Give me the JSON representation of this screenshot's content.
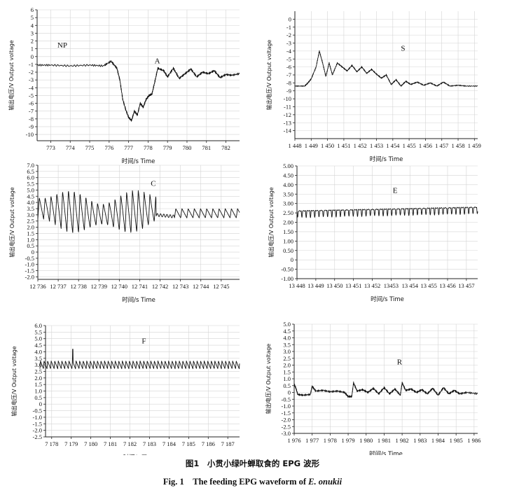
{
  "chart_data": [
    {
      "type": "line",
      "panel_label": "NP / A",
      "annotations": [
        "NP",
        "A"
      ],
      "xlabel": "时间/s Time",
      "ylabel": "输出电压/V Output voltage",
      "xlim": [
        772.3,
        782.7
      ],
      "ylim": [
        -10.8,
        6
      ],
      "x_ticks": [
        773,
        774,
        775,
        776,
        777,
        778,
        779,
        780,
        781,
        782
      ],
      "x_tick_labels": [
        "773",
        "774",
        "775",
        "776",
        "777",
        "778",
        "779",
        "780",
        "781",
        "782"
      ],
      "y_ticks": [
        6,
        5,
        4,
        3,
        2,
        1,
        0,
        -1,
        -2,
        -3,
        -4,
        -5,
        -6,
        -7,
        -8,
        -9,
        -10
      ],
      "series": [
        {
          "x": [
            772.3,
            773.0,
            774.0,
            775.0,
            775.7,
            776.1,
            776.4,
            776.55,
            776.7,
            776.85,
            777.0,
            777.15,
            777.3,
            777.45,
            777.6,
            777.75,
            777.9,
            778.05,
            778.2,
            778.35,
            778.5,
            778.8,
            779.0,
            779.3,
            779.6,
            779.9,
            780.2,
            780.5,
            780.8,
            781.1,
            781.4,
            781.7,
            782.0,
            782.3,
            782.7
          ],
          "y": [
            -1.1,
            -1.1,
            -1.2,
            -1.1,
            -1.2,
            -0.6,
            -1.5,
            -3.0,
            -5.5,
            -6.8,
            -7.8,
            -8.2,
            -7.0,
            -7.5,
            -6.0,
            -6.5,
            -5.5,
            -5.0,
            -4.8,
            -3.2,
            -1.5,
            -1.8,
            -2.6,
            -1.5,
            -2.8,
            -2.2,
            -1.6,
            -2.6,
            -2.0,
            -2.2,
            -1.8,
            -2.7,
            -2.3,
            -2.4,
            -2.2
          ]
        }
      ]
    },
    {
      "type": "line",
      "panel_label": "S",
      "annotations": [
        "S"
      ],
      "xlabel": "时间/s Time",
      "ylabel": "输出电压/V Output voltage",
      "xlim": [
        1448,
        1459.2
      ],
      "ylim": [
        -15,
        1
      ],
      "x_ticks": [
        1448,
        1449,
        1450,
        1451,
        1452,
        1453,
        1454,
        1455,
        1456,
        1457,
        1458,
        1459
      ],
      "x_tick_labels": [
        "1 448",
        "1 449",
        "1 450",
        "1 451",
        "1 452",
        "1 453",
        "1 454",
        "1 455",
        "1 456",
        "1 457",
        "1 458",
        "1 459"
      ],
      "y_ticks": [
        0,
        -1,
        -2,
        -3,
        -4,
        -5,
        -6,
        -7,
        -8,
        -9,
        -10,
        -11,
        -12,
        -13,
        -14
      ],
      "series": [
        {
          "x": [
            1448.0,
            1448.6,
            1448.8,
            1449.0,
            1449.3,
            1449.5,
            1449.7,
            1449.9,
            1450.1,
            1450.3,
            1450.6,
            1450.9,
            1451.2,
            1451.5,
            1451.8,
            1452.1,
            1452.4,
            1452.7,
            1453.0,
            1453.3,
            1453.6,
            1453.9,
            1454.2,
            1454.5,
            1454.8,
            1455.1,
            1455.5,
            1455.9,
            1456.3,
            1456.7,
            1457.1,
            1457.5,
            1458.0,
            1458.5,
            1459.2
          ],
          "y": [
            -8.4,
            -8.4,
            -8.0,
            -7.5,
            -6.0,
            -4.0,
            -5.5,
            -7.2,
            -5.5,
            -7.0,
            -5.5,
            -6.0,
            -6.5,
            -5.8,
            -6.6,
            -6.0,
            -6.8,
            -6.3,
            -6.9,
            -7.4,
            -7.0,
            -8.2,
            -7.6,
            -8.4,
            -7.8,
            -8.2,
            -7.9,
            -8.3,
            -8.0,
            -8.4,
            -7.9,
            -8.4,
            -8.3,
            -8.4,
            -8.4
          ]
        }
      ]
    },
    {
      "type": "line",
      "panel_label": "C",
      "annotations": [
        "C"
      ],
      "xlabel": "时间/s Time",
      "ylabel": "输出电压/V Output voltage",
      "xlim": [
        12736,
        12745.9
      ],
      "ylim": [
        -2.2,
        7.0
      ],
      "x_ticks": [
        12736,
        12737,
        12738,
        12739,
        12740,
        12741,
        12742,
        12743,
        12744,
        12745
      ],
      "x_tick_labels": [
        "12 736",
        "12 737",
        "12 738",
        "12 739",
        "12 740",
        "12 741",
        "12 742",
        "12 743",
        "12 744",
        "12 745"
      ],
      "y_ticks": [
        7.0,
        6.5,
        6.0,
        5.5,
        5.0,
        4.5,
        4.0,
        3.5,
        3.0,
        2.5,
        2.0,
        1.5,
        1.0,
        0.5,
        0.0,
        -0.5,
        -1.0,
        -1.5,
        -2.0
      ],
      "y_tick_labels": [
        "7.0",
        "6.5",
        "6.0",
        "5.5",
        "5.0",
        "4.5",
        "4.0",
        "3.5",
        "3.0",
        "2.5",
        "2.0",
        "1.5",
        "1.0",
        "0.5",
        "0",
        "-0.5",
        "-1.0",
        "-1.5",
        "-2.0"
      ],
      "waveform": "oscillation, 4.8 to 2.2 V at about 3.5 Hz until 12 741.8 s, then about 3.0 V with smaller oscillation (3.5 to 2.7 V)"
    },
    {
      "type": "line",
      "panel_label": "E",
      "annotations": [
        "E"
      ],
      "xlabel": "时间/s Time",
      "ylabel": "输出电压/V Output voltage",
      "xlim": [
        13448,
        13457.6
      ],
      "ylim": [
        -1.0,
        5.0
      ],
      "x_ticks": [
        13448,
        13449,
        13450,
        13451,
        13452,
        13453,
        13454,
        13455,
        13456,
        13457
      ],
      "x_tick_labels": [
        "13 448",
        "13 449",
        "13 450",
        "13 451",
        "13 452",
        "13453",
        "13 454",
        "13 455",
        "13 456",
        "13 457"
      ],
      "y_ticks": [
        5.0,
        4.5,
        4.0,
        3.5,
        3.0,
        2.5,
        2.0,
        1.5,
        1.0,
        0.5,
        0.0,
        -0.5,
        -1.0
      ],
      "y_tick_labels": [
        "5.00",
        "4.50",
        "4.00",
        "3.50",
        "3.00",
        "2.50",
        "2.00",
        "1.50",
        "1.00",
        "0.50",
        "0",
        "-0.50",
        "-1.00"
      ],
      "waveform": "regular dips about 4.4 Hz; baseline rises from 2.6 V to 2.8 V, dips about 0.35 V"
    },
    {
      "type": "line",
      "panel_label": "F",
      "annotations": [
        "F"
      ],
      "xlabel": "时间/s Time",
      "ylabel": "输出电压/V Output voltage",
      "xlim": [
        7177.4,
        7187.6
      ],
      "ylim": [
        -2.5,
        6.0
      ],
      "x_ticks": [
        7178,
        7179,
        7180,
        7181,
        7182,
        7183,
        7184,
        7185,
        7186,
        7187
      ],
      "x_tick_labels": [
        "7 178",
        "7 179",
        "7 180",
        "7 181",
        "7 182",
        "7 183",
        "7 184",
        "7 185",
        "7 186",
        "7 187"
      ],
      "y_ticks": [
        6.0,
        5.5,
        5.0,
        4.5,
        4.0,
        3.5,
        3.0,
        2.5,
        2.0,
        1.5,
        1.0,
        0.5,
        0.0,
        -0.5,
        -1.0,
        -1.5,
        -2.0,
        -2.5
      ],
      "y_tick_labels": [
        "6.0",
        "5.5",
        "5.0",
        "4.5",
        "4.0",
        "3.5",
        "3.0",
        "2.5",
        "2.0",
        "1.5",
        "1.0",
        "0.5",
        "0",
        "-0.5",
        "-1.0",
        "-1.5",
        "-2.0",
        "-2.5"
      ],
      "waveform": "sawtooth oscillation between 3.3 and 2.7 V at about 5.5 Hz; single spike to 4.2 V near 7 179 s"
    },
    {
      "type": "line",
      "panel_label": "R",
      "annotations": [
        "R"
      ],
      "xlabel": "时间/s Time",
      "ylabel": "输出电压/V Output voltage",
      "xlim": [
        1976,
        1986.2
      ],
      "ylim": [
        -3.0,
        5.0
      ],
      "x_ticks": [
        1976,
        1977,
        1978,
        1979,
        1980,
        1981,
        1982,
        1983,
        1984,
        1985,
        1986
      ],
      "x_tick_labels": [
        "1 976",
        "1 977",
        "1 978",
        "1 979",
        "1 980",
        "1 981",
        "1 982",
        "1 983",
        "1 984",
        "1 985",
        "1 986"
      ],
      "y_ticks": [
        5.0,
        4.5,
        4.0,
        3.5,
        3.0,
        2.5,
        2.0,
        1.5,
        1.0,
        0.5,
        0.0,
        -0.5,
        -1.0,
        -1.5,
        -2.0,
        -2.5,
        -3.0
      ],
      "y_tick_labels": [
        "5.0",
        "4.5",
        "4.0",
        "3.5",
        "3.0",
        "2.5",
        "2.0",
        "1.5",
        "1.0",
        "0.5",
        "0",
        "-0.5",
        "-1.0",
        "-1.5",
        "-2.0",
        "-2.5",
        "-3.0"
      ],
      "series": [
        {
          "x": [
            1976.0,
            1976.1,
            1976.2,
            1976.5,
            1976.9,
            1977.0,
            1977.2,
            1977.6,
            1978.0,
            1978.4,
            1978.8,
            1979.0,
            1979.2,
            1979.3,
            1979.5,
            1979.8,
            1980.1,
            1980.4,
            1980.7,
            1981.0,
            1981.3,
            1981.6,
            1981.9,
            1982.0,
            1982.2,
            1982.5,
            1982.8,
            1983.1,
            1983.4,
            1983.7,
            1984.0,
            1984.3,
            1984.6,
            1984.9,
            1985.2,
            1985.6,
            1986.2
          ],
          "y": [
            0.6,
            0.3,
            -0.15,
            -0.2,
            -0.15,
            0.45,
            0.1,
            0.15,
            0.05,
            0.1,
            0.0,
            -0.3,
            -0.3,
            0.7,
            0.1,
            0.2,
            0.0,
            0.3,
            -0.1,
            0.35,
            -0.1,
            0.25,
            -0.2,
            0.7,
            0.15,
            0.25,
            0.0,
            0.2,
            -0.1,
            0.3,
            -0.2,
            0.35,
            -0.1,
            0.15,
            -0.1,
            0.0,
            -0.1
          ]
        }
      ]
    }
  ],
  "caption": {
    "zh": "图1　小贯小绿叶蝉取食的 EPG 波形",
    "en_prefix": "Fig. 1　The feeding EPG waveform of ",
    "en_species": "E. onukii"
  }
}
